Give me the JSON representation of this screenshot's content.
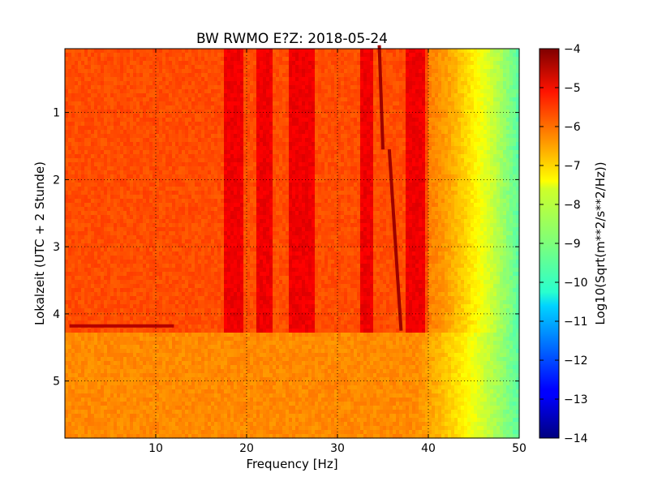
{
  "chart_data": {
    "type": "heatmap",
    "title": "BW RWMO E?Z: 2018-05-24",
    "xlabel": "Frequency [Hz]",
    "ylabel": "Lokalzeit (UTC + 2 Stunde)",
    "xlim": [
      0,
      50
    ],
    "ylim": [
      5.85,
      0.05
    ],
    "y_inverted": true,
    "grid": true,
    "x_ticks": [
      10,
      20,
      30,
      40,
      50
    ],
    "x_tick_labels": [
      "10",
      "20",
      "30",
      "40",
      "50"
    ],
    "y_ticks": [
      1,
      2,
      3,
      4,
      5
    ],
    "y_tick_labels": [
      "1",
      "2",
      "3",
      "4",
      "5"
    ],
    "colorbar": {
      "label": "Log10(Sqrt(m**2/s**2/Hz))",
      "range": [
        -14,
        -4
      ],
      "ticks": [
        -4,
        -5,
        -6,
        -7,
        -8,
        -9,
        -10,
        -11,
        -12,
        -13,
        -14
      ],
      "tick_labels": [
        "−4",
        "−5",
        "−6",
        "−7",
        "−8",
        "−9",
        "−10",
        "−11",
        "−12",
        "−13",
        "−14"
      ],
      "colormap": "jet"
    },
    "features": {
      "base_level": -6.0,
      "strong_bands_hz": [
        [
          17.5,
          19.5
        ],
        [
          21,
          23
        ],
        [
          24.5,
          27.5
        ],
        [
          32.5,
          34
        ],
        [
          37.5,
          39.5
        ]
      ],
      "band_level": -5.1,
      "rolloff_hz": [
        40,
        50
      ],
      "rolloff_low_level": -6.5,
      "rolloff_high_level": -9.4,
      "change_time": 4.25,
      "after_change_level": -6.6,
      "after_change_rolloff_hz": [
        38,
        50
      ],
      "drifting_line_segments": [
        {
          "t": [
            0.0,
            1.55
          ],
          "f": [
            34.6,
            35.0
          ]
        },
        {
          "t": [
            1.55,
            4.25
          ],
          "f": [
            35.7,
            37.0
          ]
        }
      ],
      "drifting_line_level": -4.3,
      "horizontal_line": {
        "t": 4.18,
        "f": [
          0.5,
          12
        ],
        "level": -4.5
      }
    }
  }
}
